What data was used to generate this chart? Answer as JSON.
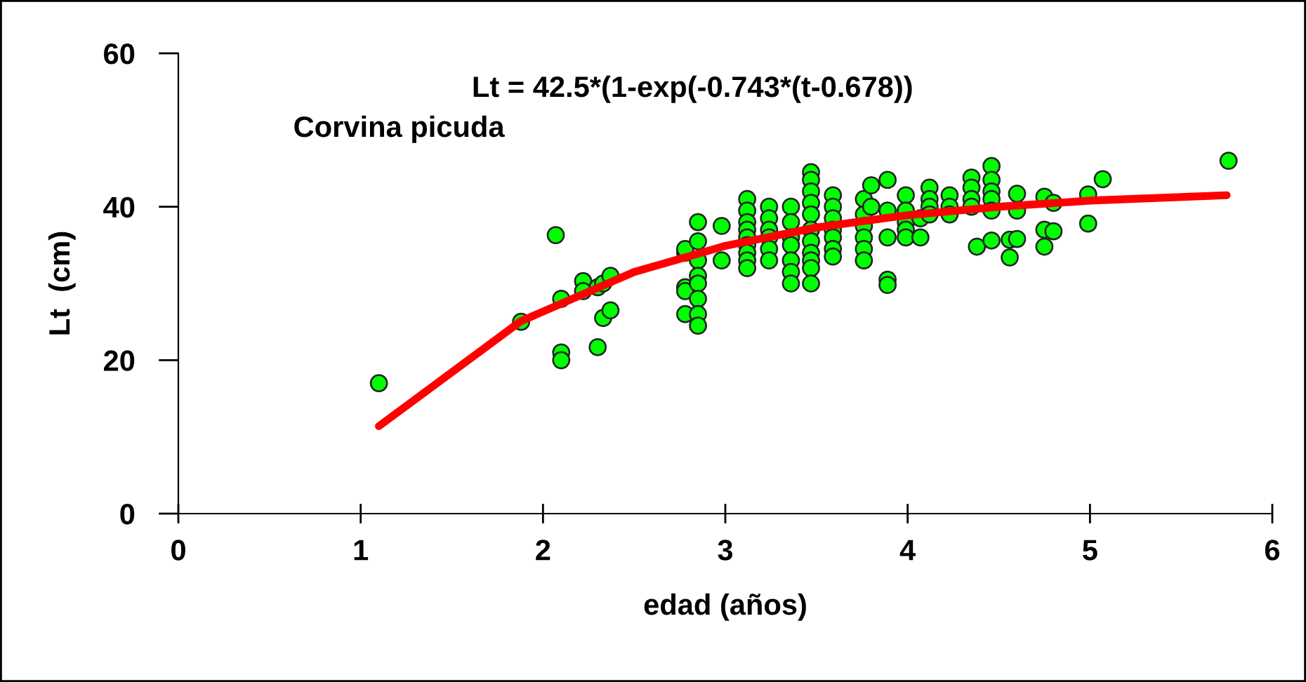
{
  "chart_data": {
    "type": "scatter",
    "title": "Lt = 42.5*(1-exp(-0.743*(t-0.678))",
    "annotations": [
      "Corvina picuda"
    ],
    "xlabel": "edad (años)",
    "ylabel": "Lt  (cm)",
    "xlim": [
      0,
      6
    ],
    "ylim": [
      0,
      60
    ],
    "xticks": [
      0,
      1,
      2,
      3,
      4,
      5,
      6
    ],
    "yticks": [
      0,
      20,
      40,
      60
    ],
    "grid": false,
    "legend": false,
    "marker": "circle",
    "series": [
      {
        "color": "#00ff00",
        "x": [
          1.1,
          1.88,
          2.07,
          2.1,
          2.1,
          2.1,
          2.22,
          2.22,
          2.3,
          2.3,
          2.33,
          2.33,
          2.37,
          2.37,
          2.78,
          2.78,
          2.78,
          2.78,
          2.78,
          2.85,
          2.85,
          2.85,
          2.85,
          2.85,
          2.85,
          2.85,
          2.85,
          2.98,
          2.98,
          3.12,
          3.12,
          3.12,
          3.12,
          3.12,
          3.12,
          3.12,
          3.12,
          3.12,
          3.24,
          3.24,
          3.24,
          3.24,
          3.24,
          3.24,
          3.36,
          3.36,
          3.36,
          3.36,
          3.36,
          3.36,
          3.36,
          3.47,
          3.47,
          3.47,
          3.47,
          3.47,
          3.47,
          3.47,
          3.47,
          3.47,
          3.47,
          3.47,
          3.59,
          3.59,
          3.59,
          3.59,
          3.59,
          3.59,
          3.59,
          3.76,
          3.76,
          3.76,
          3.76,
          3.76,
          3.76,
          3.8,
          3.8,
          3.89,
          3.89,
          3.89,
          3.89,
          3.89,
          3.99,
          3.99,
          3.99,
          3.99,
          3.99,
          4.07,
          4.07,
          4.12,
          4.12,
          4.12,
          4.12,
          4.23,
          4.23,
          4.23,
          4.35,
          4.35,
          4.35,
          4.35,
          4.38,
          4.46,
          4.46,
          4.46,
          4.46,
          4.46,
          4.46,
          4.56,
          4.56,
          4.6,
          4.6,
          4.6,
          4.75,
          4.75,
          4.75,
          4.8,
          4.8,
          4.99,
          4.99,
          5.07,
          5.76
        ],
        "values": [
          17,
          25,
          36.3,
          28,
          21,
          20,
          30.3,
          29,
          21.7,
          29.5,
          25.5,
          30,
          31,
          26.5,
          29.5,
          29,
          26,
          34,
          34.5,
          38,
          35.5,
          33,
          31,
          30,
          28,
          26,
          24.5,
          37.5,
          33,
          41,
          39.5,
          38,
          37,
          36,
          35,
          34,
          33,
          32,
          40,
          38.5,
          37,
          36,
          34.5,
          33,
          40,
          38,
          36,
          35,
          33,
          31.5,
          30,
          44.5,
          43.5,
          42,
          40.5,
          39,
          37,
          35.5,
          34,
          33,
          32,
          30,
          41.5,
          40,
          38.5,
          37,
          36,
          34.5,
          33.5,
          41,
          39,
          37.5,
          36,
          34.5,
          33,
          42.8,
          40,
          43.5,
          39.5,
          36,
          30.5,
          29.8,
          41.5,
          39.5,
          38,
          37,
          36,
          38.5,
          36,
          42.5,
          41,
          40,
          39,
          41.5,
          40,
          39,
          43.8,
          42.5,
          41,
          40,
          34.8,
          45.3,
          43.5,
          42,
          41,
          39.5,
          35.6,
          35.7,
          33.4,
          41.7,
          39.5,
          35.8,
          41.3,
          37,
          34.8,
          40.5,
          36.8,
          41.6,
          37.8,
          43.6,
          46
        ]
      },
      {
        "type": "line",
        "color": "#ff0000",
        "marker": "none",
        "x": [
          1.1,
          1.88,
          2.5,
          3,
          3.5,
          4,
          4.5,
          5,
          5.75
        ],
        "values": [
          11.4,
          25.1,
          31.5,
          34.9,
          37.3,
          38.9,
          40.0,
          40.8,
          41.5
        ]
      }
    ]
  }
}
